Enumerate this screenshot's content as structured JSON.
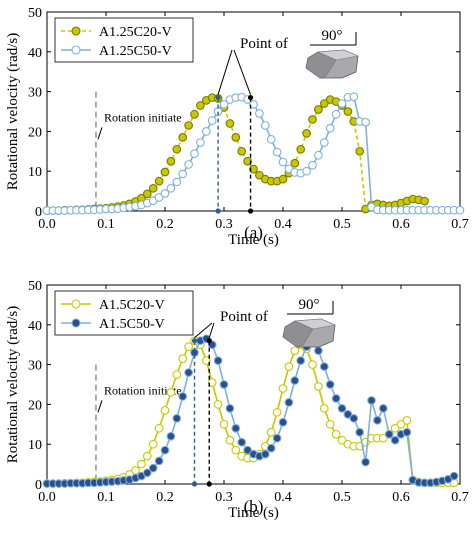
{
  "chart_data": [
    {
      "type": "line",
      "panel_label": "(a)",
      "xlabel": "Time (s)",
      "ylabel": "Rotational velocity (rad/s)",
      "xlim": [
        0.0,
        0.7
      ],
      "ylim": [
        0,
        50
      ],
      "xticks": [
        "0.0",
        "0.1",
        "0.2",
        "0.3",
        "0.4",
        "0.5",
        "0.6",
        "0.7"
      ],
      "yticks": [
        "0",
        "10",
        "20",
        "30",
        "40",
        "50"
      ],
      "annotations": {
        "rotation": "Rotation initiate",
        "rotation_x": 0.083,
        "point_of": "Point of",
        "angle": "90°"
      },
      "markers": [
        {
          "x": 0.29,
          "y": 28.5,
          "color": "#2f5f8f"
        },
        {
          "x": 0.345,
          "y": 28.5,
          "color": "#000000"
        }
      ],
      "series": [
        {
          "name": "A1.25C20-V",
          "color": "#c8c800",
          "marker_fill": "#c8c800",
          "dashed": true,
          "x": [
            0.0,
            0.01,
            0.02,
            0.03,
            0.04,
            0.05,
            0.06,
            0.07,
            0.08,
            0.09,
            0.1,
            0.11,
            0.12,
            0.13,
            0.14,
            0.15,
            0.16,
            0.17,
            0.18,
            0.19,
            0.2,
            0.21,
            0.22,
            0.23,
            0.24,
            0.25,
            0.26,
            0.27,
            0.28,
            0.29,
            0.3,
            0.31,
            0.32,
            0.33,
            0.34,
            0.35,
            0.36,
            0.37,
            0.38,
            0.39,
            0.4,
            0.41,
            0.42,
            0.43,
            0.44,
            0.45,
            0.46,
            0.47,
            0.48,
            0.49,
            0.5,
            0.51,
            0.52,
            0.53,
            0.54,
            0.55,
            0.56,
            0.57,
            0.58,
            0.59,
            0.6,
            0.61,
            0.62,
            0.63,
            0.64
          ],
          "y": [
            0.1,
            0.1,
            0.1,
            0.2,
            0.2,
            0.3,
            0.3,
            0.4,
            0.5,
            0.6,
            0.7,
            0.9,
            1.1,
            1.4,
            1.8,
            2.4,
            3.2,
            4.3,
            5.7,
            7.5,
            9.8,
            12.5,
            15.5,
            18.5,
            21.5,
            24.3,
            26.5,
            27.8,
            28.5,
            28.3,
            26.0,
            22.0,
            18.5,
            15.0,
            12.5,
            10.5,
            9.0,
            8.0,
            7.5,
            7.5,
            8.0,
            9.5,
            12.0,
            15.5,
            19.5,
            23.0,
            25.5,
            27.0,
            28.0,
            27.5,
            26.5,
            25.0,
            22.5,
            15.0,
            0.5,
            1.5,
            1.8,
            1.5,
            1.3,
            1.5,
            2.0,
            2.5,
            3.0,
            2.8,
            2.5
          ]
        },
        {
          "name": "A1.25C50-V",
          "color": "#7fb0e0",
          "marker_fill": "#ffffff",
          "dashed": false,
          "x": [
            0.0,
            0.01,
            0.02,
            0.03,
            0.04,
            0.05,
            0.06,
            0.07,
            0.08,
            0.09,
            0.1,
            0.11,
            0.12,
            0.13,
            0.14,
            0.15,
            0.16,
            0.17,
            0.18,
            0.19,
            0.2,
            0.21,
            0.22,
            0.23,
            0.24,
            0.25,
            0.26,
            0.27,
            0.28,
            0.29,
            0.3,
            0.31,
            0.32,
            0.33,
            0.34,
            0.35,
            0.36,
            0.37,
            0.38,
            0.39,
            0.4,
            0.41,
            0.42,
            0.43,
            0.44,
            0.45,
            0.46,
            0.47,
            0.48,
            0.49,
            0.5,
            0.51,
            0.52,
            0.53,
            0.54,
            0.55,
            0.56,
            0.57,
            0.58,
            0.59,
            0.6,
            0.61,
            0.62,
            0.63,
            0.64,
            0.65,
            0.66,
            0.67,
            0.68,
            0.69,
            0.7
          ],
          "y": [
            0.1,
            0.1,
            0.1,
            0.1,
            0.2,
            0.2,
            0.2,
            0.3,
            0.3,
            0.4,
            0.5,
            0.5,
            0.6,
            0.8,
            1.0,
            1.2,
            1.5,
            2.0,
            2.6,
            3.4,
            4.4,
            5.7,
            7.3,
            9.3,
            11.7,
            14.4,
            17.2,
            20.0,
            22.7,
            25.0,
            26.8,
            28.0,
            28.5,
            28.6,
            28.0,
            26.8,
            24.5,
            21.5,
            18.0,
            14.8,
            12.3,
            10.6,
            9.7,
            9.5,
            10.0,
            11.5,
            14.0,
            17.2,
            20.8,
            24.3,
            27.0,
            28.6,
            28.7,
            22.5,
            22.3,
            1.0,
            0.3,
            0.2,
            0.2,
            0.2,
            0.2,
            0.2,
            0.2,
            0.2,
            0.2,
            0.2,
            0.2,
            0.2,
            0.2,
            0.2,
            0.2
          ]
        }
      ]
    },
    {
      "type": "line",
      "panel_label": "(b)",
      "xlabel": "Time (s)",
      "ylabel": "Rotational velocity (rad/s)",
      "xlim": [
        0.0,
        0.7
      ],
      "ylim": [
        0,
        50
      ],
      "xticks": [
        "0.0",
        "0.1",
        "0.2",
        "0.3",
        "0.4",
        "0.5",
        "0.6",
        "0.7"
      ],
      "yticks": [
        "0",
        "10",
        "20",
        "30",
        "40",
        "50"
      ],
      "annotations": {
        "rotation": "Rotation initiate",
        "rotation_x": 0.083,
        "point_of": "Point of",
        "angle": "90°"
      },
      "markers": [
        {
          "x": 0.25,
          "y": 36.0,
          "color": "#2f5f8f"
        },
        {
          "x": 0.275,
          "y": 36.0,
          "color": "#000000"
        }
      ],
      "series": [
        {
          "name": "A1.5C20-V",
          "color": "#c8c800",
          "marker_fill": "#ffffff",
          "dashed": false,
          "x": [
            0.0,
            0.01,
            0.02,
            0.03,
            0.04,
            0.05,
            0.06,
            0.07,
            0.08,
            0.09,
            0.1,
            0.11,
            0.12,
            0.13,
            0.14,
            0.15,
            0.16,
            0.17,
            0.18,
            0.19,
            0.2,
            0.21,
            0.22,
            0.23,
            0.24,
            0.25,
            0.26,
            0.27,
            0.28,
            0.29,
            0.3,
            0.31,
            0.32,
            0.33,
            0.34,
            0.35,
            0.36,
            0.37,
            0.38,
            0.39,
            0.4,
            0.41,
            0.42,
            0.43,
            0.44,
            0.45,
            0.46,
            0.47,
            0.48,
            0.49,
            0.5,
            0.51,
            0.52,
            0.53,
            0.54,
            0.55,
            0.56,
            0.57,
            0.58,
            0.59,
            0.6,
            0.61,
            0.62,
            0.63,
            0.64,
            0.65,
            0.66,
            0.67,
            0.68,
            0.69
          ],
          "y": [
            0.1,
            0.1,
            0.1,
            0.2,
            0.2,
            0.3,
            0.3,
            0.4,
            0.5,
            0.6,
            0.8,
            1.0,
            1.3,
            1.7,
            2.4,
            3.4,
            5.0,
            7.0,
            10.0,
            14.0,
            18.5,
            23.0,
            27.5,
            31.5,
            34.5,
            36.0,
            35.0,
            31.0,
            25.5,
            20.0,
            15.0,
            11.0,
            8.5,
            7.0,
            6.5,
            6.5,
            7.5,
            9.5,
            13.0,
            18.0,
            24.0,
            29.5,
            33.5,
            35.0,
            34.0,
            30.0,
            24.5,
            19.0,
            15.0,
            12.5,
            11.0,
            10.0,
            9.5,
            9.5,
            10.5,
            11.5,
            11.5,
            11.5,
            12.5,
            14.0,
            15.0,
            16.0,
            1.0,
            0.5,
            0.3,
            0.3,
            0.3,
            0.3,
            0.3,
            0.3
          ]
        },
        {
          "name": "A1.5C50-V",
          "color": "#7fb0e0",
          "marker_fill": "#2c4f8a",
          "dashed": false,
          "x": [
            0.0,
            0.01,
            0.02,
            0.03,
            0.04,
            0.05,
            0.06,
            0.07,
            0.08,
            0.09,
            0.1,
            0.11,
            0.12,
            0.13,
            0.14,
            0.15,
            0.16,
            0.17,
            0.18,
            0.19,
            0.2,
            0.21,
            0.22,
            0.23,
            0.24,
            0.25,
            0.26,
            0.27,
            0.28,
            0.29,
            0.3,
            0.31,
            0.32,
            0.33,
            0.34,
            0.35,
            0.36,
            0.37,
            0.38,
            0.39,
            0.4,
            0.41,
            0.42,
            0.43,
            0.44,
            0.45,
            0.46,
            0.47,
            0.48,
            0.49,
            0.5,
            0.51,
            0.52,
            0.53,
            0.54,
            0.55,
            0.56,
            0.57,
            0.58,
            0.59,
            0.6,
            0.61,
            0.62,
            0.63,
            0.64,
            0.65,
            0.66,
            0.67,
            0.68,
            0.69
          ],
          "y": [
            0.1,
            0.1,
            0.1,
            0.1,
            0.2,
            0.2,
            0.2,
            0.3,
            0.3,
            0.4,
            0.5,
            0.6,
            0.7,
            0.9,
            1.1,
            1.5,
            2.0,
            2.8,
            4.0,
            5.8,
            8.5,
            12.0,
            16.5,
            22.0,
            28.0,
            33.0,
            36.0,
            36.5,
            35.0,
            31.0,
            25.0,
            19.0,
            14.0,
            10.5,
            8.5,
            7.5,
            7.0,
            7.5,
            9.0,
            11.5,
            15.5,
            20.5,
            26.0,
            31.0,
            34.5,
            35.5,
            33.5,
            29.5,
            25.0,
            21.5,
            19.0,
            17.5,
            16.5,
            13.0,
            5.5,
            21.0,
            16.0,
            19.0,
            12.5,
            11.0,
            12.5,
            13.0,
            1.0,
            0.4,
            0.3,
            0.3,
            0.5,
            0.8,
            1.2,
            2.0
          ]
        }
      ]
    }
  ]
}
